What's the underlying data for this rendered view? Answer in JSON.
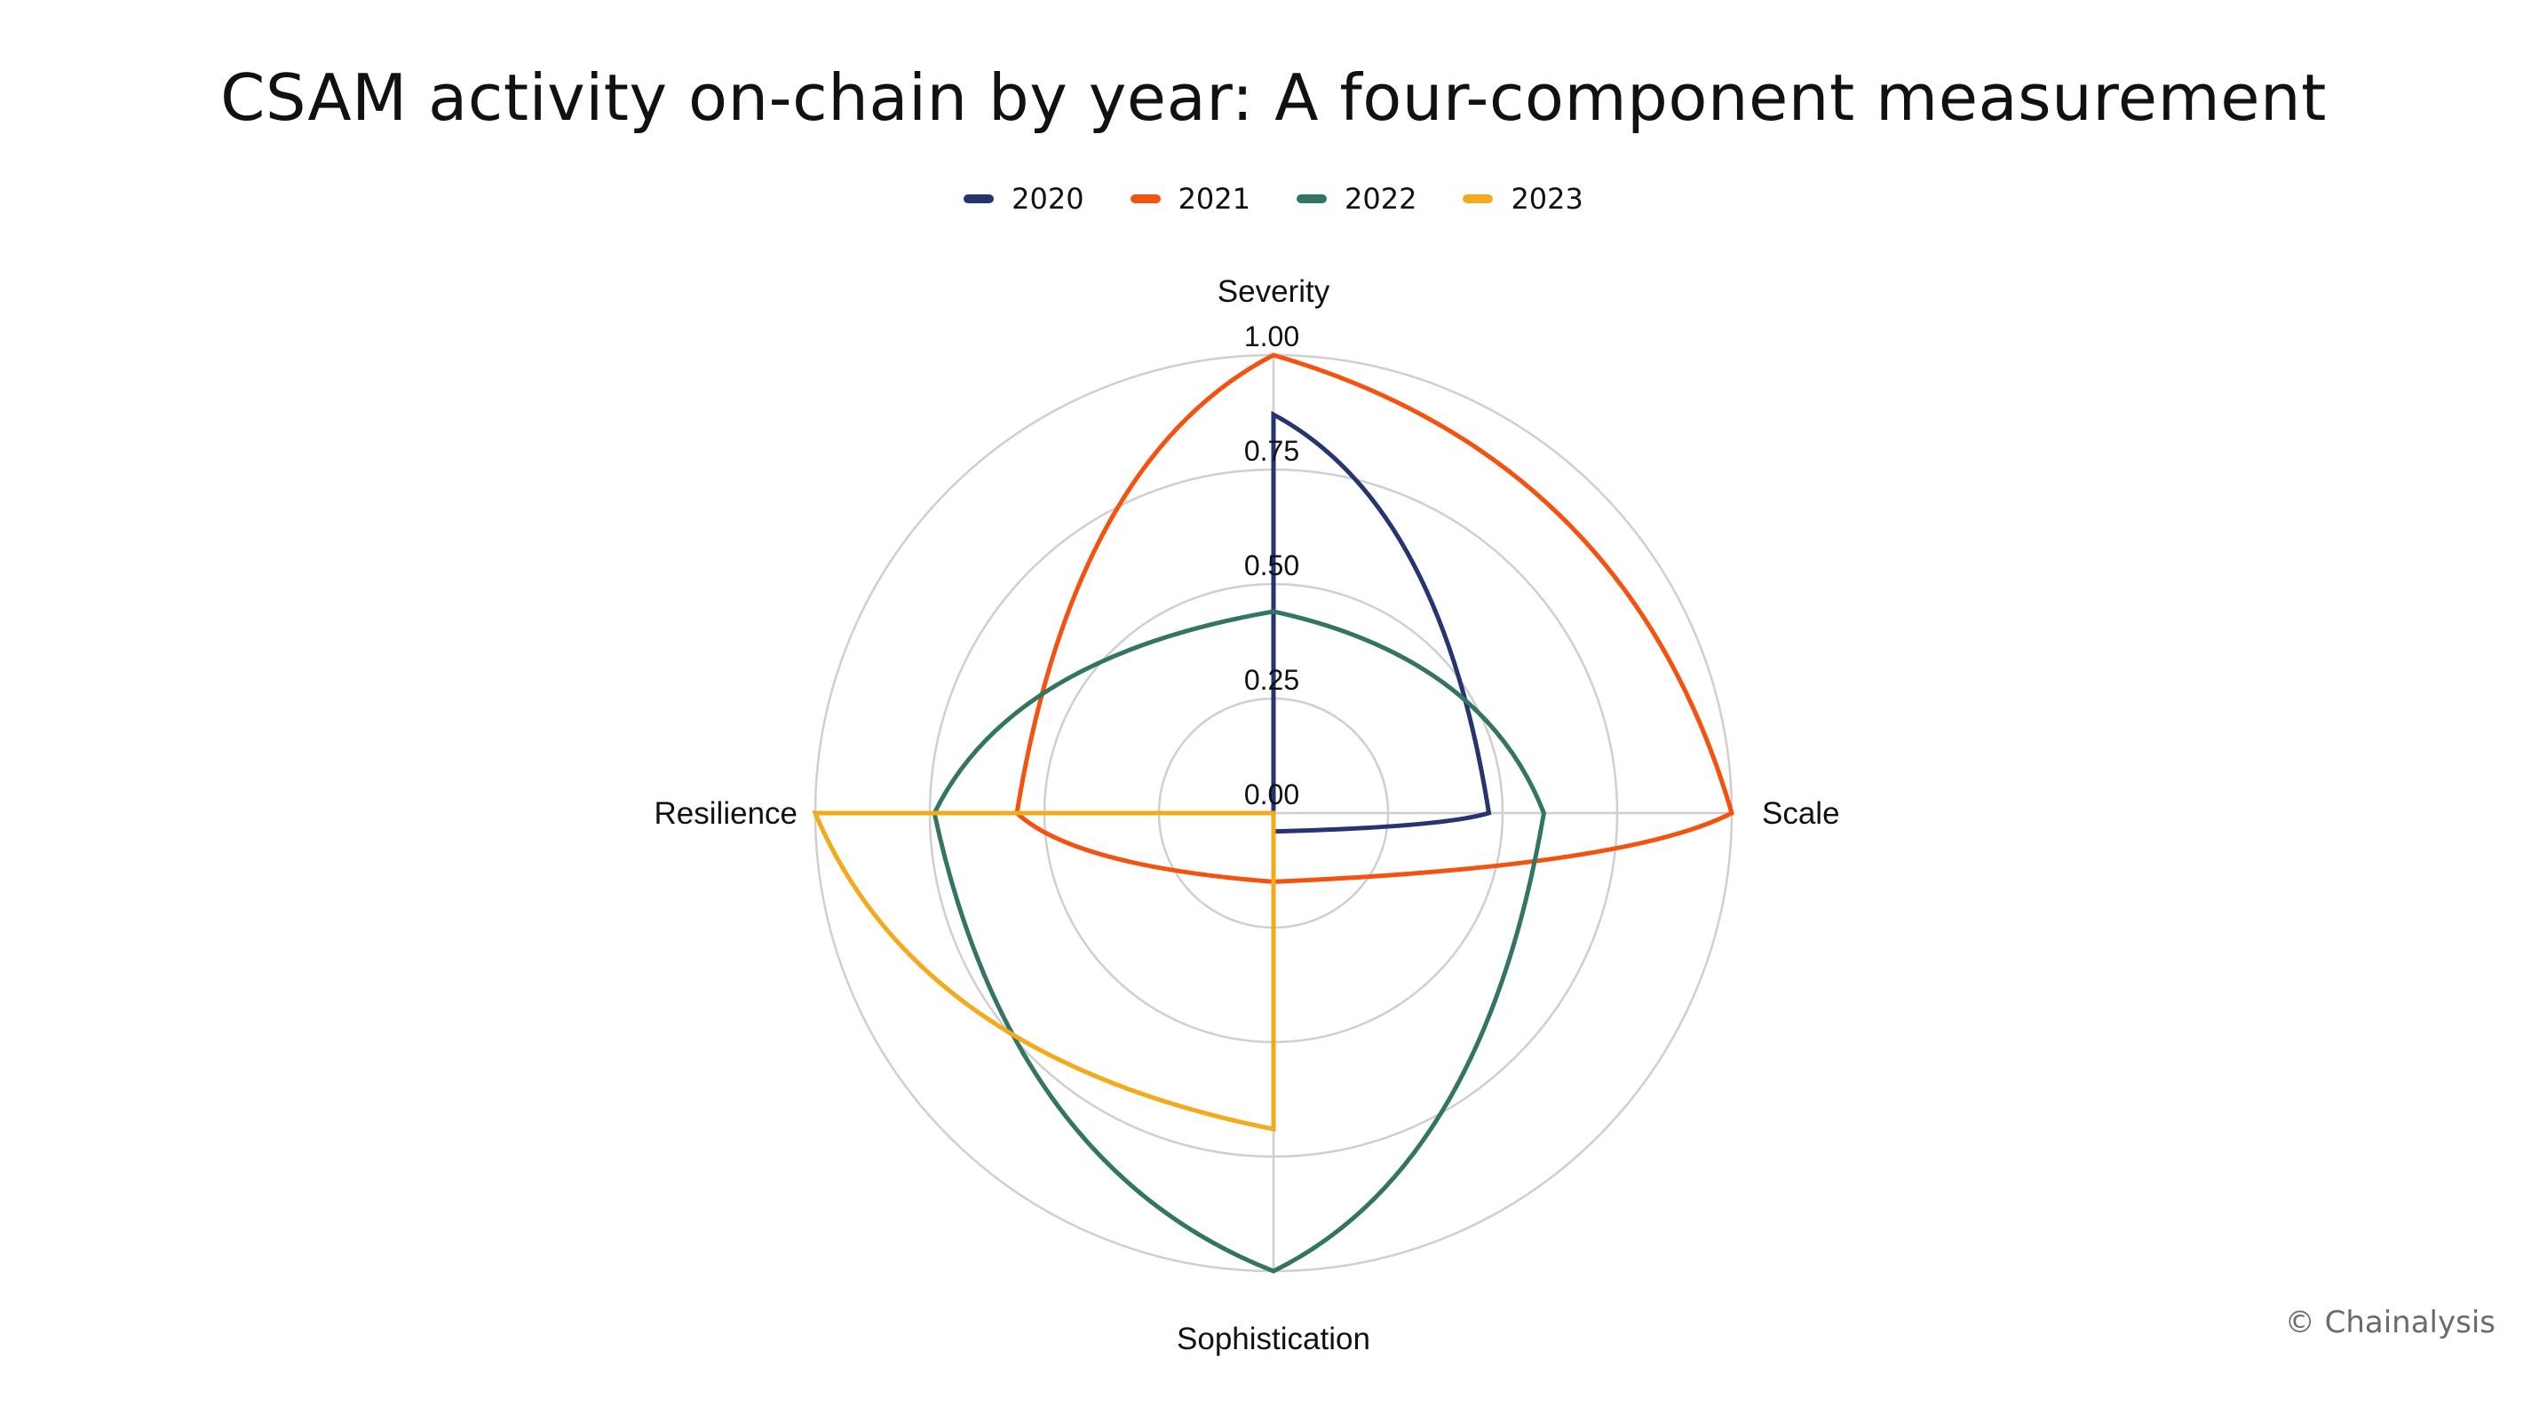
{
  "chart_data": {
    "type": "radar",
    "title": "CSAM activity on-chain by year: A four-component measurement",
    "axes": [
      "Severity",
      "Scale",
      "Sophistication",
      "Resilience"
    ],
    "rlim": [
      0,
      1
    ],
    "ticks": [
      0,
      0.25,
      0.5,
      0.75,
      1
    ],
    "tick_labels": [
      "0.00",
      "0.25",
      "0.50",
      "0.75",
      "1.00"
    ],
    "series": [
      {
        "name": "2020",
        "color": "#263572",
        "values": [
          0.87,
          0.47,
          0.04,
          0.0
        ]
      },
      {
        "name": "2021",
        "color": "#F5520F",
        "values": [
          1.0,
          1.0,
          0.15,
          0.56
        ]
      },
      {
        "name": "2022",
        "color": "#337563",
        "values": [
          0.44,
          0.59,
          1.0,
          0.74
        ]
      },
      {
        "name": "2023",
        "color": "#F3AA1B",
        "values": [
          0.0,
          0.0,
          0.69,
          1.0
        ]
      }
    ],
    "legend_position": "top-center",
    "grid": true
  },
  "credit": "© Chainalysis"
}
